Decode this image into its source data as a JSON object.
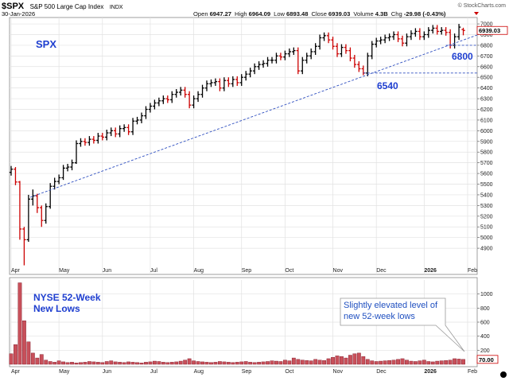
{
  "header": {
    "symbol": "$SPX",
    "name": "S&P 500 Large Cap Index",
    "exchange": "INDX",
    "date": "30-Jan-2026",
    "credit": "© StockCharts.com",
    "stats_labels": [
      "Open",
      "High",
      "Low",
      "Close",
      "Volume",
      "Chg"
    ],
    "volume": "4.3B",
    "change": "-29.98 (-0.43%)"
  },
  "chart_data": [
    {
      "type": "ohlc",
      "title": "SPX",
      "categories": [
        "Apr",
        null,
        null,
        null,
        null,
        null,
        null,
        null,
        null,
        null,
        null,
        "May",
        null,
        null,
        null,
        null,
        null,
        null,
        null,
        null,
        null,
        "Jun",
        null,
        null,
        null,
        null,
        null,
        null,
        null,
        null,
        null,
        null,
        "Jul",
        null,
        null,
        null,
        null,
        null,
        null,
        null,
        null,
        null,
        "Aug",
        null,
        null,
        null,
        null,
        null,
        null,
        null,
        null,
        null,
        null,
        "Sep",
        null,
        null,
        null,
        null,
        null,
        null,
        null,
        null,
        null,
        "Oct",
        null,
        null,
        null,
        null,
        null,
        null,
        null,
        null,
        null,
        null,
        "Nov",
        null,
        null,
        null,
        null,
        null,
        null,
        null,
        null,
        null,
        "Dec",
        null,
        null,
        null,
        null,
        null,
        null,
        null,
        null,
        null,
        null,
        "2026",
        null,
        null,
        null,
        null,
        null,
        null,
        null,
        null,
        null,
        "Feb"
      ],
      "open": [
        5610,
        5640,
        5520,
        5080,
        4980,
        5360,
        5390,
        5280,
        5160,
        5290,
        5480,
        5525,
        5560,
        5650,
        5660,
        5700,
        5880,
        5900,
        5890,
        5920,
        5910,
        5950,
        5940,
        5980,
        6000,
        5970,
        6020,
        6030,
        5990,
        6090,
        6100,
        6140,
        6200,
        6230,
        6260,
        6280,
        6300,
        6290,
        6340,
        6360,
        6380,
        6340,
        6240,
        6300,
        6340,
        6400,
        6440,
        6450,
        6460,
        6400,
        6470,
        6440,
        6480,
        6450,
        6500,
        6530,
        6560,
        6600,
        6620,
        6630,
        6660,
        6660,
        6700,
        6690,
        6720,
        6740,
        6750,
        6560,
        6660,
        6700,
        6740,
        6790,
        6870,
        6890,
        6850,
        6790,
        6720,
        6780,
        6750,
        6680,
        6620,
        6580,
        6540,
        6700,
        6810,
        6840,
        6850,
        6870,
        6880,
        6900,
        6860,
        6820,
        6880,
        6910,
        6930,
        6880,
        6900,
        6940,
        6960,
        6930,
        6940,
        6920,
        6800,
        6880,
        6947.27,
        null
      ],
      "high": [
        5670,
        5660,
        5530,
        5100,
        5400,
        5450,
        5410,
        5300,
        5320,
        5510,
        5560,
        5590,
        5680,
        5690,
        5730,
        5910,
        5930,
        5930,
        5950,
        5950,
        5980,
        5980,
        6010,
        6030,
        6030,
        6050,
        6060,
        6060,
        6120,
        6130,
        6170,
        6230,
        6260,
        6290,
        6310,
        6330,
        6330,
        6370,
        6390,
        6410,
        6410,
        6370,
        6330,
        6370,
        6430,
        6470,
        6480,
        6490,
        6490,
        6500,
        6500,
        6510,
        6510,
        6530,
        6560,
        6590,
        6630,
        6650,
        6660,
        6690,
        6690,
        6730,
        6730,
        6750,
        6770,
        6780,
        6780,
        6690,
        6730,
        6770,
        6820,
        6900,
        6920,
        6920,
        6880,
        6820,
        6810,
        6810,
        6780,
        6710,
        6650,
        6610,
        6730,
        6840,
        6870,
        6880,
        6900,
        6910,
        6930,
        6930,
        6890,
        6910,
        6940,
        6960,
        6960,
        6930,
        6970,
        6990,
        6990,
        6970,
        6970,
        6950,
        6910,
        7000,
        6964.09,
        null
      ],
      "low": [
        5580,
        5490,
        4980,
        4740,
        4960,
        5300,
        5230,
        5100,
        5130,
        5270,
        5450,
        5500,
        5540,
        5620,
        5630,
        5690,
        5850,
        5860,
        5860,
        5880,
        5880,
        5910,
        5910,
        5950,
        5940,
        5940,
        5990,
        5960,
        5960,
        6060,
        6070,
        6110,
        6170,
        6200,
        6230,
        6250,
        6260,
        6260,
        6310,
        6330,
        6310,
        6210,
        6210,
        6270,
        6310,
        6370,
        6410,
        6420,
        6370,
        6370,
        6410,
        6410,
        6420,
        6420,
        6470,
        6500,
        6530,
        6570,
        6590,
        6600,
        6630,
        6630,
        6660,
        6660,
        6690,
        6710,
        6530,
        6530,
        6630,
        6670,
        6710,
        6760,
        6840,
        6820,
        6760,
        6690,
        6690,
        6720,
        6650,
        6590,
        6550,
        6520,
        6510,
        6670,
        6780,
        6810,
        6820,
        6840,
        6850,
        6830,
        6790,
        6790,
        6850,
        6880,
        6850,
        6850,
        6870,
        6910,
        6900,
        6900,
        6890,
        6770,
        6770,
        6850,
        6893.48,
        null
      ],
      "close": [
        5640,
        5520,
        5080,
        4980,
        5360,
        5390,
        5280,
        5160,
        5290,
        5480,
        5525,
        5560,
        5650,
        5660,
        5700,
        5880,
        5900,
        5890,
        5920,
        5910,
        5950,
        5940,
        5980,
        6000,
        5970,
        6020,
        6030,
        5990,
        6090,
        6100,
        6140,
        6200,
        6230,
        6260,
        6280,
        6300,
        6290,
        6340,
        6360,
        6380,
        6340,
        6240,
        6300,
        6340,
        6400,
        6440,
        6450,
        6460,
        6400,
        6470,
        6440,
        6480,
        6450,
        6500,
        6530,
        6560,
        6600,
        6620,
        6630,
        6660,
        6660,
        6700,
        6690,
        6720,
        6740,
        6750,
        6560,
        6660,
        6700,
        6740,
        6790,
        6870,
        6890,
        6850,
        6790,
        6720,
        6780,
        6750,
        6680,
        6620,
        6580,
        6540,
        6700,
        6810,
        6840,
        6850,
        6870,
        6880,
        6900,
        6860,
        6820,
        6880,
        6910,
        6930,
        6880,
        6900,
        6940,
        6960,
        6930,
        6940,
        6920,
        6800,
        6880,
        6970,
        6939.03,
        null
      ],
      "ylim": [
        4655,
        7060
      ],
      "yticks": [
        4900,
        5000,
        5100,
        5200,
        5300,
        5400,
        5500,
        5600,
        5700,
        5800,
        5900,
        6000,
        6100,
        6200,
        6300,
        6400,
        6500,
        6600,
        6700,
        6800,
        6900,
        7000
      ],
      "grid": true,
      "up_color": "#000000",
      "down_color": "#cc0000",
      "levels": [
        6800,
        6540
      ]
    },
    {
      "type": "bar",
      "title": [
        "NYSE 52-Week",
        "New Lows"
      ],
      "categories": [
        "Apr",
        null,
        null,
        null,
        null,
        null,
        null,
        null,
        null,
        null,
        null,
        "May",
        null,
        null,
        null,
        null,
        null,
        null,
        null,
        null,
        null,
        "Jun",
        null,
        null,
        null,
        null,
        null,
        null,
        null,
        null,
        null,
        null,
        "Jul",
        null,
        null,
        null,
        null,
        null,
        null,
        null,
        null,
        null,
        "Aug",
        null,
        null,
        null,
        null,
        null,
        null,
        null,
        null,
        null,
        null,
        "Sep",
        null,
        null,
        null,
        null,
        null,
        null,
        null,
        null,
        null,
        "Oct",
        null,
        null,
        null,
        null,
        null,
        null,
        null,
        null,
        null,
        null,
        "Nov",
        null,
        null,
        null,
        null,
        null,
        null,
        null,
        null,
        null,
        "Dec",
        null,
        null,
        null,
        null,
        null,
        null,
        null,
        null,
        null,
        null,
        "2026",
        null,
        null,
        null,
        null,
        null,
        null,
        null,
        null,
        null,
        "Feb"
      ],
      "values": [
        150,
        280,
        1160,
        620,
        320,
        160,
        90,
        140,
        60,
        40,
        30,
        50,
        35,
        25,
        30,
        20,
        25,
        30,
        40,
        35,
        30,
        25,
        40,
        50,
        35,
        30,
        25,
        35,
        30,
        25,
        20,
        30,
        35,
        45,
        40,
        30,
        25,
        30,
        35,
        45,
        60,
        80,
        50,
        40,
        35,
        30,
        25,
        30,
        40,
        35,
        30,
        25,
        30,
        35,
        40,
        30,
        25,
        30,
        35,
        40,
        50,
        45,
        40,
        60,
        50,
        90,
        70,
        60,
        55,
        50,
        70,
        60,
        55,
        80,
        100,
        120,
        110,
        90,
        130,
        150,
        160,
        110,
        70,
        50,
        40,
        45,
        50,
        55,
        60,
        70,
        80,
        60,
        45,
        40,
        50,
        60,
        40,
        35,
        45,
        50,
        55,
        60,
        80,
        75,
        70,
        null
      ],
      "last_value_label": "70.00",
      "ylim": [
        0,
        1200
      ],
      "yticks": [
        200,
        400,
        600,
        800,
        1000
      ],
      "grid": true,
      "color": "#c8505a",
      "annotation": [
        "Slightly elevated level of",
        "new 52-week lows"
      ]
    }
  ]
}
